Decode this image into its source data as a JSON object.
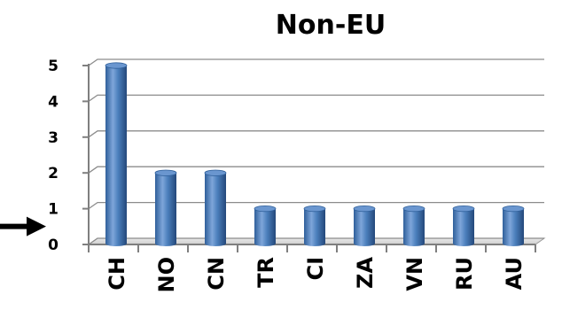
{
  "chart_data": {
    "type": "bar",
    "title": "Non-EU",
    "xlabel": "",
    "ylabel": "",
    "categories": [
      "CH",
      "NO",
      "CN",
      "TR",
      "CI",
      "ZA",
      "VN",
      "RU",
      "AU"
    ],
    "values": [
      5,
      2,
      2,
      1,
      1,
      1,
      1,
      1,
      1
    ],
    "yticks": [
      "0",
      "1",
      "2",
      "3",
      "4",
      "5"
    ],
    "ylim": [
      0,
      5
    ],
    "grid": true,
    "style": "3d-cylinder",
    "bar_color": "#4a7ebb",
    "annotation": {
      "type": "arrow",
      "points_to_value": 1,
      "color": "#000000"
    }
  }
}
